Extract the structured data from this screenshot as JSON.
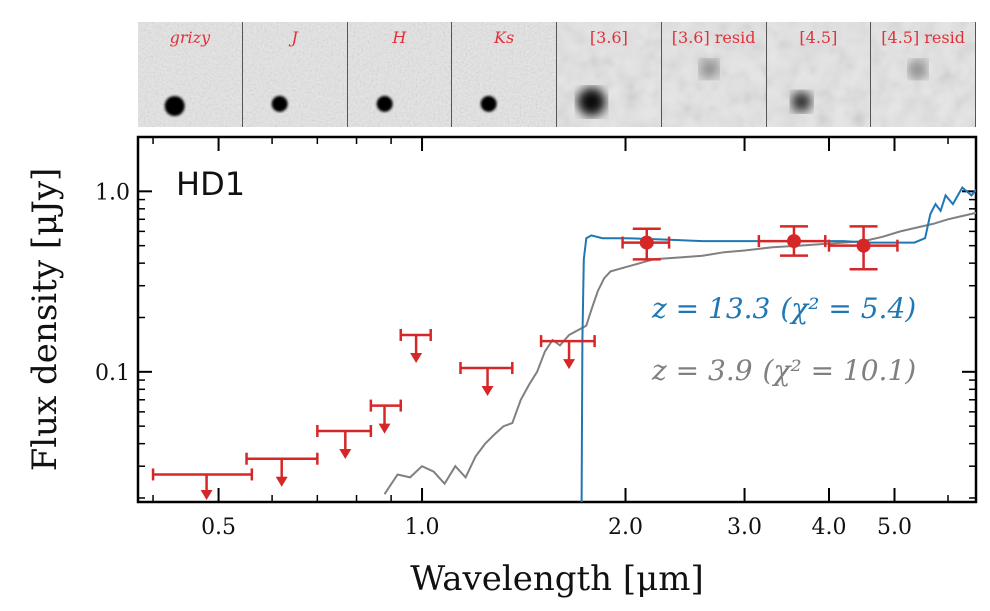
{
  "stamps": [
    {
      "label": "grizy",
      "italic": true,
      "source": "strong"
    },
    {
      "label": "J",
      "italic": true,
      "source": "medium"
    },
    {
      "label": "H",
      "italic": true,
      "source": "medium"
    },
    {
      "label": "Ks",
      "italic": true,
      "source": "medium"
    },
    {
      "label": "[3.6]",
      "italic": false,
      "source": "strong-blur"
    },
    {
      "label": "[3.6] resid",
      "italic": false,
      "source": "faint-blur"
    },
    {
      "label": "[4.5]",
      "italic": false,
      "source": "medium-blur"
    },
    {
      "label": "[4.5] resid",
      "italic": false,
      "source": "faint-blur"
    }
  ],
  "chart_data": {
    "type": "scatter",
    "object_name": "HD1",
    "xlabel": "Wavelength [μm]",
    "ylabel": "Flux density [μJy]",
    "xscale": "log",
    "yscale": "log",
    "xlim": [
      0.38,
      6.6
    ],
    "ylim": [
      0.019,
      2.0
    ],
    "xticks": [
      0.5,
      1.0,
      2.0,
      3.0,
      4.0,
      5.0
    ],
    "xtick_labels": [
      "0.5",
      "1.0",
      "2.0",
      "3.0",
      "4.0",
      "5.0"
    ],
    "yticks": [
      0.1,
      1.0
    ],
    "ytick_labels": [
      "0.1",
      "1.0"
    ],
    "colors": {
      "detections": "#d62728",
      "model_z13": "#1f77b4",
      "model_z4": "#808080",
      "stamp_label": "#e0303a"
    },
    "upper_limits": [
      {
        "x": 0.48,
        "xlo": 0.4,
        "xhi": 0.56,
        "y": 0.027
      },
      {
        "x": 0.62,
        "xlo": 0.55,
        "xhi": 0.7,
        "y": 0.033
      },
      {
        "x": 0.77,
        "xlo": 0.7,
        "xhi": 0.84,
        "y": 0.047
      },
      {
        "x": 0.88,
        "xlo": 0.84,
        "xhi": 0.93,
        "y": 0.065
      },
      {
        "x": 0.98,
        "xlo": 0.93,
        "xhi": 1.03,
        "y": 0.16
      },
      {
        "x": 1.25,
        "xlo": 1.14,
        "xhi": 1.36,
        "y": 0.105
      },
      {
        "x": 1.65,
        "xlo": 1.5,
        "xhi": 1.8,
        "y": 0.148
      }
    ],
    "detections": [
      {
        "x": 2.15,
        "xlo": 1.98,
        "xhi": 2.32,
        "y": 0.52,
        "ylo": 0.42,
        "yhi": 0.62
      },
      {
        "x": 3.55,
        "xlo": 3.15,
        "xhi": 3.95,
        "y": 0.53,
        "ylo": 0.44,
        "yhi": 0.64
      },
      {
        "x": 4.5,
        "xlo": 4.0,
        "xhi": 5.05,
        "y": 0.5,
        "ylo": 0.37,
        "yhi": 0.64
      }
    ],
    "series": [
      {
        "label_prefix": "z = 13.3",
        "label_suffix": "(χ² = 5.4)",
        "color": "#1f77b4",
        "x": [
          1.722,
          1.727,
          1.735,
          1.75,
          1.78,
          1.85,
          2.0,
          2.3,
          2.6,
          3.0,
          3.4,
          3.8,
          4.2,
          4.6,
          5.0,
          5.35,
          5.55,
          5.65,
          5.75,
          5.85,
          5.95,
          6.1,
          6.3,
          6.5,
          6.6
        ],
        "y": [
          0.019,
          0.15,
          0.42,
          0.55,
          0.57,
          0.55,
          0.55,
          0.54,
          0.53,
          0.53,
          0.53,
          0.53,
          0.53,
          0.52,
          0.52,
          0.52,
          0.55,
          0.75,
          0.85,
          0.78,
          0.95,
          0.85,
          1.05,
          0.95,
          1.02
        ]
      },
      {
        "label_prefix": "z = 3.9",
        "label_suffix": "(χ² = 10.1)",
        "color": "#808080",
        "x": [
          0.88,
          0.92,
          0.96,
          1.0,
          1.04,
          1.08,
          1.12,
          1.16,
          1.2,
          1.24,
          1.28,
          1.32,
          1.36,
          1.4,
          1.44,
          1.48,
          1.52,
          1.56,
          1.6,
          1.65,
          1.7,
          1.75,
          1.78,
          1.82,
          1.86,
          1.9,
          2.0,
          2.1,
          2.2,
          2.4,
          2.6,
          2.8,
          3.0,
          3.3,
          3.6,
          3.9,
          4.2,
          4.5,
          4.8,
          5.1,
          5.4,
          5.7,
          6.0,
          6.3,
          6.6
        ],
        "y": [
          0.021,
          0.027,
          0.026,
          0.03,
          0.028,
          0.024,
          0.03,
          0.026,
          0.034,
          0.04,
          0.045,
          0.05,
          0.052,
          0.07,
          0.085,
          0.1,
          0.13,
          0.15,
          0.14,
          0.16,
          0.17,
          0.18,
          0.22,
          0.28,
          0.33,
          0.36,
          0.38,
          0.4,
          0.42,
          0.43,
          0.44,
          0.46,
          0.47,
          0.49,
          0.5,
          0.51,
          0.52,
          0.53,
          0.56,
          0.6,
          0.63,
          0.66,
          0.7,
          0.73,
          0.76
        ]
      }
    ]
  }
}
